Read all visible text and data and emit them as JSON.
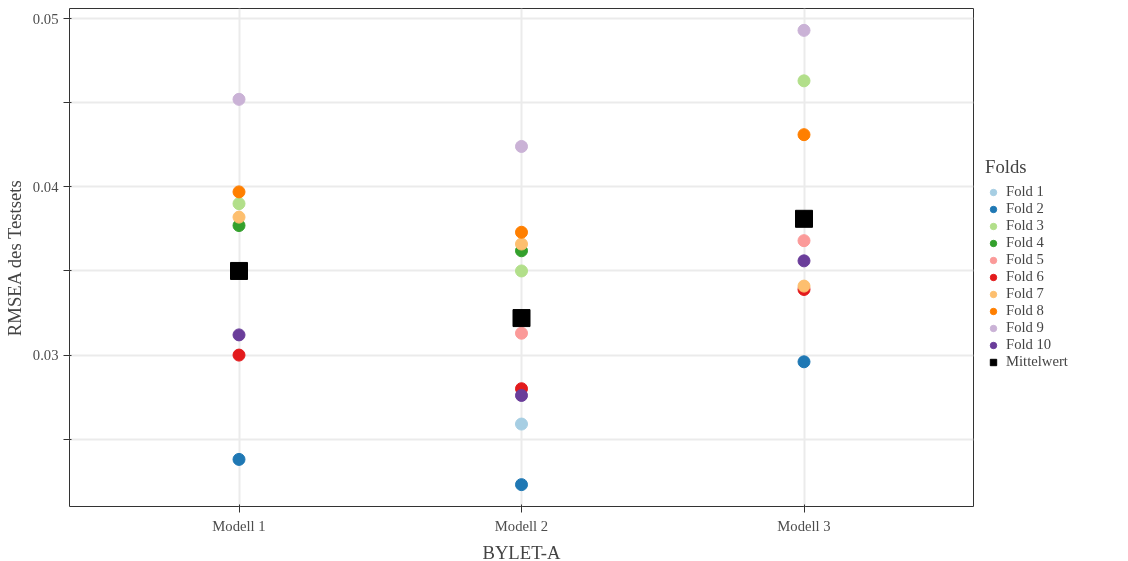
{
  "chart_data": {
    "type": "scatter",
    "xlabel": "BYLET-A",
    "ylabel": "RMSEA des Testsets",
    "legend_title": "Folds",
    "categories": [
      "Modell 1",
      "Modell 2",
      "Modell 3"
    ],
    "ylim": [
      0.021,
      0.0506
    ],
    "yticks": [
      {
        "value": 0.025,
        "label": null
      },
      0.03,
      {
        "value": 0.035,
        "label": null
      },
      0.04,
      {
        "value": 0.045,
        "label": null
      },
      0.05
    ],
    "grid": true,
    "legend": "right",
    "marker": "circle",
    "series": [
      {
        "name": "Fold 1",
        "color": "#a6cee3",
        "values": [
          null,
          0.0259,
          null
        ]
      },
      {
        "name": "Fold 2",
        "color": "#1f78b4",
        "values": [
          0.0238,
          0.0223,
          0.0296
        ]
      },
      {
        "name": "Fold 3",
        "color": "#b2df8a",
        "values": [
          0.039,
          0.035,
          0.0463
        ]
      },
      {
        "name": "Fold 4",
        "color": "#33a02c",
        "values": [
          0.0377,
          0.0362,
          null
        ]
      },
      {
        "name": "Fold 5",
        "color": "#fb9a99",
        "values": [
          null,
          0.0313,
          0.0368
        ]
      },
      {
        "name": "Fold 6",
        "color": "#e31a1c",
        "values": [
          0.03,
          0.028,
          0.0339
        ]
      },
      {
        "name": "Fold 7",
        "color": "#fdbf6f",
        "values": [
          0.0382,
          0.0366,
          0.0341
        ]
      },
      {
        "name": "Fold 8",
        "color": "#ff7f00",
        "values": [
          0.0397,
          0.0373,
          0.0431
        ]
      },
      {
        "name": "Fold 9",
        "color": "#cab2d6",
        "values": [
          0.0452,
          0.0424,
          0.0493
        ]
      },
      {
        "name": "Fold 10",
        "color": "#6a3d9a",
        "values": [
          0.0312,
          0.0276,
          0.0356
        ]
      },
      {
        "name": "Mittelwert",
        "color": "#000000",
        "marker": "square",
        "values": [
          0.035,
          0.0322,
          0.0381
        ]
      }
    ]
  }
}
